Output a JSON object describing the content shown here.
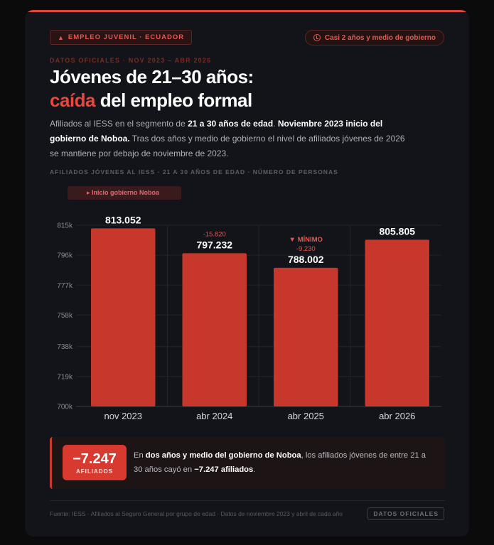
{
  "badge": {
    "icon": "warning-icon",
    "label": "EMPLEO JUVENIL · ECUADOR"
  },
  "pill": {
    "icon": "clock-icon",
    "label": "Casi 2 años y medio de gobierno"
  },
  "kicker": "DATOS OFICIALES · NOV 2023 – ABR 2026",
  "title": {
    "line1": "Jóvenes de 21–30 años:",
    "accent": "caída",
    "rest": " del empleo formal"
  },
  "description": {
    "p1": "Afiliados al IESS en el segmento de ",
    "b1": "21 a 30 años de edad",
    "p2": ". ",
    "b2": "Noviembre 2023 inicio del gobierno de Noboa.",
    "p3": " Tras dos años y medio de gobierno el nivel de afiliados jóvenes de 2026 se mantiene por debajo de noviembre de 2023."
  },
  "subhead": "AFILIADOS JÓVENES AL IESS · 21 A 30 AÑOS DE EDAD · NÚMERO DE PERSONAS",
  "marker_label": "▸ Inicio gobierno Noboa",
  "chart_data": {
    "type": "bar",
    "categories": [
      "nov 2023",
      "abr 2024",
      "abr 2025",
      "abr 2026"
    ],
    "values": [
      813052,
      797232,
      788002,
      805805
    ],
    "value_labels": [
      "813.052",
      "797.232",
      "788.002",
      "805.805"
    ],
    "deltas": [
      "",
      "-15.820",
      "-9.230",
      ""
    ],
    "min_label": "▼ MÍNIMO",
    "min_index": 2,
    "ylim": [
      700000,
      815000
    ],
    "yticks": [
      700000,
      719000,
      738000,
      758000,
      777000,
      796000,
      815000
    ],
    "ytick_labels": [
      "700k",
      "719k",
      "738k",
      "758k",
      "777k",
      "796k",
      "815k"
    ],
    "grid": true,
    "bar_color": "#c8372c"
  },
  "summary": {
    "value": "−7.247",
    "unit": "AFILIADOS",
    "t1": "En ",
    "b1": "dos años y medio del gobierno de Noboa",
    "t2": ", los afiliados jóvenes de entre 21 a 30 años cayó en ",
    "b2": "−7.247 afiliados",
    "t3": "."
  },
  "source": "Fuente: IESS · Afiliados al Seguro General por grupo de edad · Datos de noviembre 2023 y abril de cada año",
  "tag": "DATOS OFICIALES"
}
